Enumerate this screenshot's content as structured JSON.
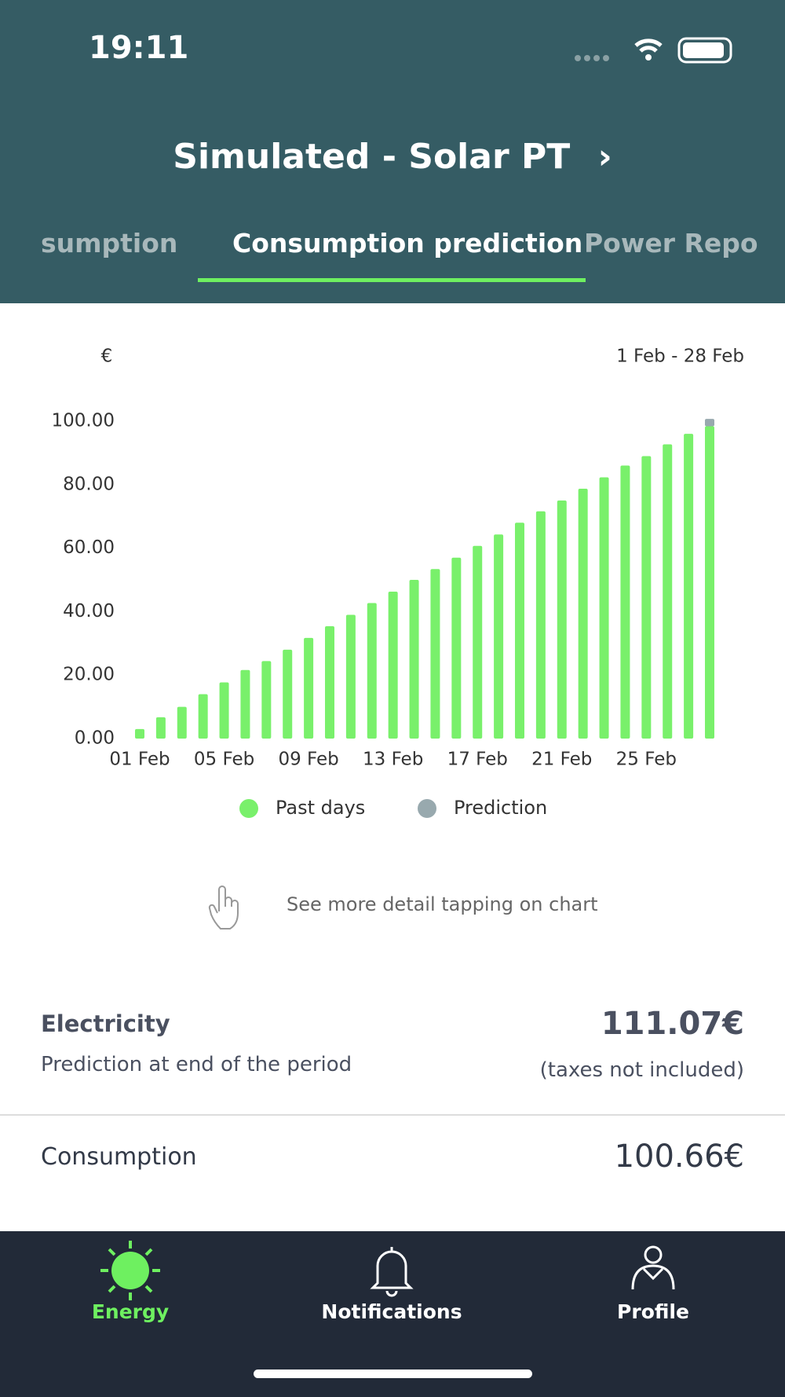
{
  "status_bar": {
    "time": "19:11"
  },
  "header": {
    "title": "Simulated - Solar PT",
    "tabs": [
      "sumption",
      "Consumption prediction",
      "Power Repo"
    ]
  },
  "chart_data": {
    "type": "bar",
    "stacked": true,
    "unit_label": "€",
    "date_range": "1 Feb - 28 Feb",
    "categories": [
      "01 Feb",
      null,
      null,
      null,
      "05 Feb",
      null,
      null,
      null,
      "09 Feb",
      null,
      null,
      null,
      "13 Feb",
      null,
      null,
      null,
      "17 Feb",
      null,
      null,
      null,
      "21 Feb",
      null,
      null,
      null,
      "25 Feb",
      null,
      null,
      null
    ],
    "series": [
      {
        "name": "Past days",
        "color": "#79f06b",
        "values": [
          3,
          6.7,
          10,
          14,
          17.7,
          21.6,
          24.4,
          28,
          31.7,
          35.4,
          39,
          42.7,
          46.3,
          50,
          53.4,
          57,
          60.7,
          64.3,
          68,
          71.6,
          75,
          78.7,
          82.3,
          86,
          89,
          92.7,
          96,
          98.4
        ]
      },
      {
        "name": "Prediction",
        "color": "#98a9ae",
        "values": [
          null,
          null,
          null,
          null,
          null,
          null,
          null,
          null,
          null,
          null,
          null,
          null,
          null,
          null,
          null,
          null,
          null,
          null,
          null,
          null,
          null,
          null,
          null,
          null,
          null,
          null,
          null,
          2.3
        ]
      }
    ],
    "ylim": [
      0,
      100
    ],
    "yticks": [
      {
        "value": 0,
        "label": "0.00"
      },
      {
        "value": 20,
        "label": "20.00"
      },
      {
        "value": 40,
        "label": "40.00"
      },
      {
        "value": 60,
        "label": "60.00"
      },
      {
        "value": 80,
        "label": "80.00"
      },
      {
        "value": 100,
        "label": "100.00"
      }
    ],
    "legend": "bottom"
  },
  "hint": "See more detail tapping on chart",
  "summary": {
    "title": "Electricity",
    "subtitle": "Prediction at end of the period",
    "total": "111.07€",
    "note": "(taxes not included)",
    "rows": [
      {
        "label": "Consumption",
        "value": "100.66€"
      }
    ]
  },
  "nav": {
    "items": [
      "Energy",
      "Notifications",
      "Profile"
    ]
  }
}
